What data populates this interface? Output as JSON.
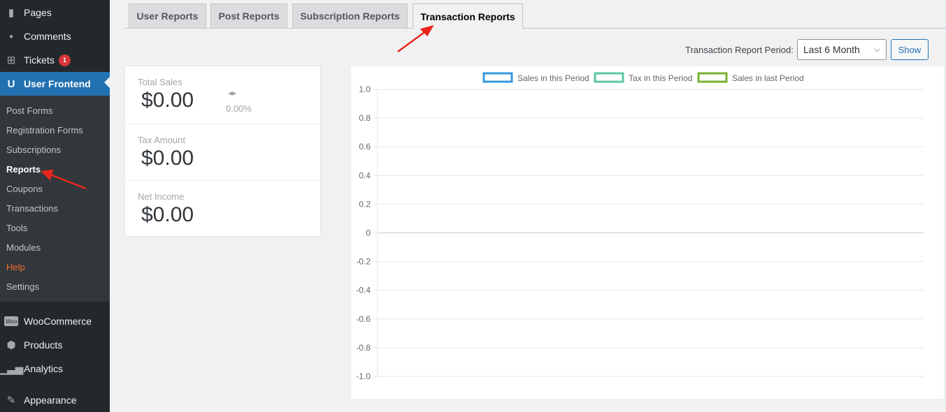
{
  "sidebar": {
    "top": [
      {
        "label": "Pages",
        "icon": "pages-icon"
      },
      {
        "label": "Comments",
        "icon": "comment-icon"
      },
      {
        "label": "Tickets",
        "icon": "tickets-icon",
        "badge": "1"
      },
      {
        "label": "User Frontend",
        "icon": "user-frontend-icon"
      }
    ],
    "submenu": [
      "Post Forms",
      "Registration Forms",
      "Subscriptions",
      "Reports",
      "Coupons",
      "Transactions",
      "Tools",
      "Modules",
      "Help",
      "Settings"
    ],
    "bottom": [
      {
        "label": "WooCommerce",
        "icon": "woocommerce-icon"
      },
      {
        "label": "Products",
        "icon": "products-icon"
      },
      {
        "label": "Analytics",
        "icon": "analytics-icon"
      },
      {
        "label": "Appearance",
        "icon": "appearance-icon"
      }
    ]
  },
  "tabs": [
    "User Reports",
    "Post Reports",
    "Subscription Reports",
    "Transaction Reports"
  ],
  "period": {
    "label": "Transaction Report Period:",
    "selected": "Last 6 Month",
    "button": "Show"
  },
  "stats": [
    {
      "label": "Total Sales",
      "value": "$0.00",
      "change": "0.00%"
    },
    {
      "label": "Tax Amount",
      "value": "$0.00"
    },
    {
      "label": "Net Income",
      "value": "$0.00"
    }
  ],
  "chart_data": {
    "type": "line",
    "series": [
      {
        "name": "Sales in this Period",
        "color": "#3498db",
        "values": []
      },
      {
        "name": "Tax in this Period",
        "color": "#5cc5a4",
        "values": []
      },
      {
        "name": "Sales in last Period",
        "color": "#7ab030",
        "values": []
      }
    ],
    "ylim": [
      -1,
      1
    ],
    "yticks": [
      "1.0",
      "0.8",
      "0.6",
      "0.4",
      "0.2",
      "0",
      "-0.2",
      "-0.4",
      "-0.6",
      "-0.8",
      "-1.0"
    ],
    "grid": true,
    "legend": "top"
  }
}
